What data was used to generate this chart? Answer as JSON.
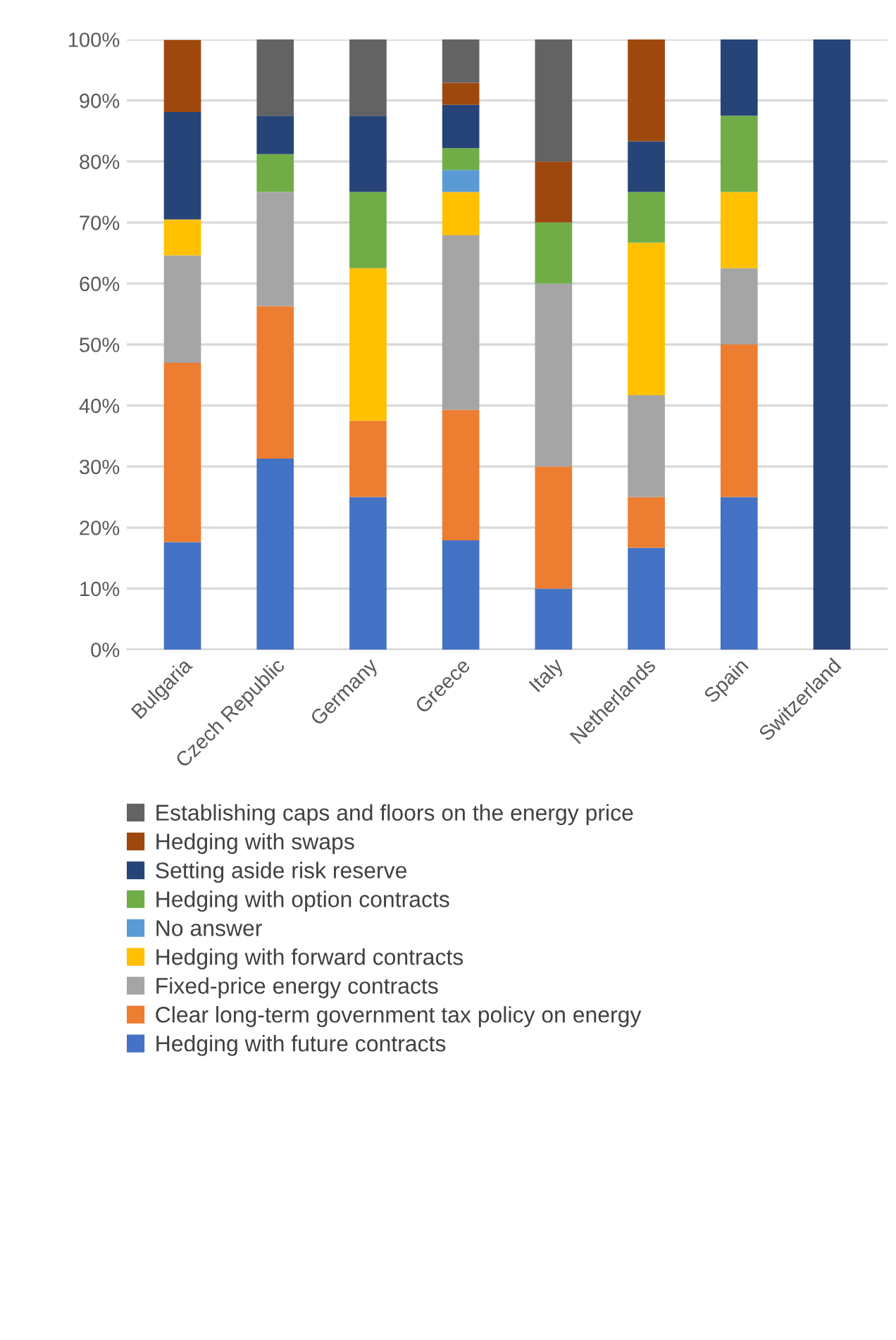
{
  "chart_data": {
    "type": "bar",
    "stacked": true,
    "categories": [
      "Bulgaria",
      "Czech Republic",
      "Germany",
      "Greece",
      "Italy",
      "Netherlands",
      "Spain",
      "Switzerland"
    ],
    "series": [
      {
        "name": "Hedging with future contracts",
        "color": "#4472c4",
        "values": [
          17.6,
          31.3,
          25,
          17.9,
          10,
          16.7,
          25,
          0
        ]
      },
      {
        "name": "Clear long-term government tax policy on energy",
        "color": "#ed7d31",
        "values": [
          29.4,
          25,
          12.5,
          21.4,
          20,
          8.3,
          25,
          0
        ]
      },
      {
        "name": "Fixed-price energy contracts",
        "color": "#a5a5a5",
        "values": [
          17.6,
          18.7,
          0,
          28.6,
          30,
          16.7,
          12.5,
          0
        ]
      },
      {
        "name": "Hedging with forward contracts",
        "color": "#ffc000",
        "values": [
          5.9,
          0,
          25,
          7.1,
          0,
          25,
          12.5,
          0
        ]
      },
      {
        "name": "No answer",
        "color": "#5b9bd5",
        "values": [
          0,
          0,
          0,
          3.6,
          0,
          0,
          0,
          0
        ]
      },
      {
        "name": "Hedging with option contracts",
        "color": "#70ad47",
        "values": [
          0,
          6.2,
          12.5,
          3.6,
          10,
          8.3,
          12.5,
          0
        ]
      },
      {
        "name": "Setting aside risk reserve",
        "color": "#264478",
        "values": [
          17.6,
          6.3,
          12.5,
          7.1,
          0,
          8.3,
          12.5,
          100
        ]
      },
      {
        "name": "Hedging with swaps",
        "color": "#9e480e",
        "values": [
          11.8,
          0,
          0,
          3.6,
          10,
          16.7,
          0,
          0
        ]
      },
      {
        "name": "Establishing caps and floors on the energy price",
        "color": "#636363",
        "values": [
          0,
          12.5,
          12.5,
          7.1,
          20,
          0,
          0,
          0
        ]
      }
    ],
    "ylim": [
      0,
      100
    ],
    "yticks": [
      {
        "value": 0,
        "label": "0%"
      },
      {
        "value": 10,
        "label": "10%"
      },
      {
        "value": 20,
        "label": "20%"
      },
      {
        "value": 30,
        "label": "30%"
      },
      {
        "value": 40,
        "label": "40%"
      },
      {
        "value": 50,
        "label": "50%"
      },
      {
        "value": 60,
        "label": "60%"
      },
      {
        "value": 70,
        "label": "70%"
      },
      {
        "value": 80,
        "label": "80%"
      },
      {
        "value": 90,
        "label": "90%"
      },
      {
        "value": 100,
        "label": "100%"
      }
    ],
    "grid": "y",
    "legend": "bottom"
  }
}
